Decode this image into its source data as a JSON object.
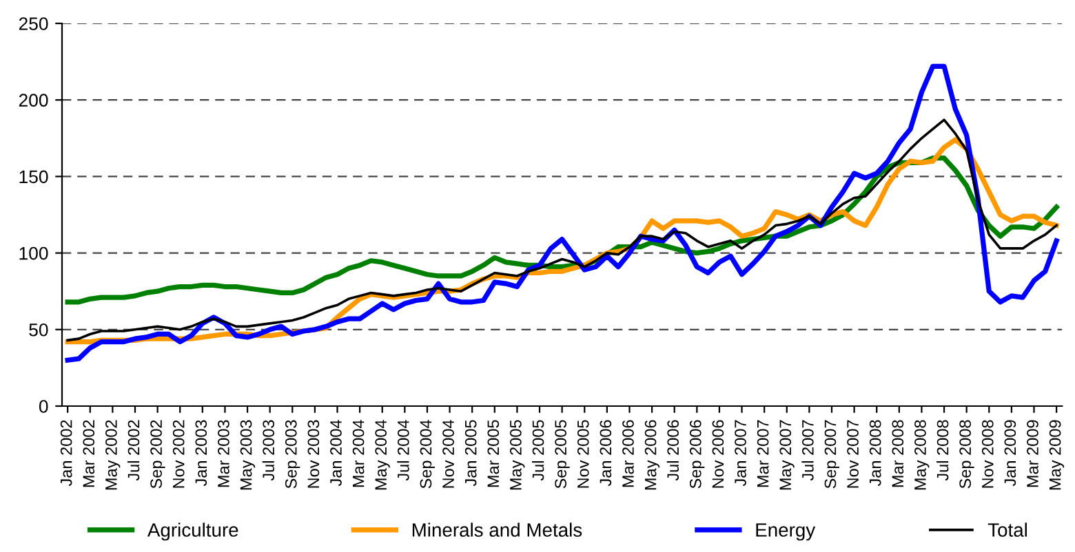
{
  "chart_data": {
    "type": "line",
    "categories": [
      "Jan 2002",
      null,
      "Mar 2002",
      null,
      "May 2002",
      null,
      "Jul 2002",
      null,
      "Sep 2002",
      null,
      "Nov 2002",
      null,
      "Jan 2003",
      null,
      "Mar 2003",
      null,
      "May 2003",
      null,
      "Jul 2003",
      null,
      "Sep 2003",
      null,
      "Nov 2003",
      null,
      "Jan 2004",
      null,
      "Mar 2004",
      null,
      "May 2004",
      null,
      "Jul 2004",
      null,
      "Sep 2004",
      null,
      "Nov 2004",
      null,
      "Jan 2005",
      null,
      "Mar 2005",
      null,
      "May 2005",
      null,
      "Jul 2005",
      null,
      "Sep 2005",
      null,
      "Nov 2005",
      null,
      "Jan 2006",
      null,
      "Mar 2006",
      null,
      "May 2006",
      null,
      "Jul 2006",
      null,
      "Sep 2006",
      null,
      "Nov 2006",
      null,
      "Jan 2007",
      null,
      "Mar 2007",
      null,
      "May 2007",
      null,
      "Jul 2007",
      null,
      "Sep 2007",
      null,
      "Nov 2007",
      null,
      "Jan 2008",
      null,
      "Mar 2008",
      null,
      "May 2008",
      null,
      "Jul 2008",
      null,
      "Sep 2008",
      null,
      "Nov 2008",
      null,
      "Jan 2009",
      null,
      "Mar 2009",
      null,
      "May 2009"
    ],
    "series": [
      {
        "name": "Agriculture",
        "color": "#008000",
        "values": [
          68,
          68,
          70,
          71,
          71,
          71,
          72,
          74,
          75,
          77,
          78,
          78,
          79,
          79,
          78,
          78,
          77,
          76,
          75,
          74,
          74,
          76,
          80,
          84,
          86,
          90,
          92,
          95,
          94,
          92,
          90,
          88,
          86,
          85,
          85,
          85,
          88,
          92,
          97,
          94,
          93,
          92,
          92,
          91,
          91,
          92,
          92,
          95,
          99,
          104,
          104,
          104,
          107,
          105,
          103,
          101,
          100,
          101,
          103,
          106,
          108,
          109,
          110,
          111,
          111,
          114,
          117,
          118,
          121,
          125,
          132,
          140,
          150,
          156,
          159,
          159,
          159,
          162,
          162,
          154,
          144,
          128,
          118,
          111,
          117,
          117,
          116,
          122,
          130
        ]
      },
      {
        "name": "Minerals and Metals",
        "color": "#ff9900",
        "values": [
          42,
          42,
          42,
          43,
          43,
          43,
          43,
          44,
          44,
          44,
          44,
          44,
          45,
          46,
          47,
          47,
          47,
          46,
          46,
          47,
          48,
          49,
          50,
          51,
          58,
          64,
          70,
          73,
          72,
          71,
          72,
          73,
          74,
          75,
          75,
          76,
          80,
          83,
          85,
          85,
          84,
          87,
          87,
          88,
          88,
          90,
          92,
          96,
          100,
          101,
          103,
          110,
          121,
          116,
          121,
          121,
          121,
          120,
          121,
          117,
          111,
          113,
          116,
          127,
          125,
          122,
          125,
          121,
          125,
          127,
          121,
          118,
          130,
          145,
          155,
          160,
          159,
          160,
          169,
          174,
          168,
          155,
          140,
          125,
          121,
          124,
          124,
          120,
          118
        ]
      },
      {
        "name": "Energy",
        "color": "#0000ff",
        "values": [
          30,
          31,
          38,
          42,
          42,
          42,
          44,
          45,
          47,
          47,
          42,
          46,
          54,
          58,
          54,
          46,
          45,
          47,
          50,
          52,
          47,
          49,
          50,
          52,
          55,
          57,
          57,
          62,
          67,
          63,
          67,
          69,
          70,
          80,
          70,
          68,
          68,
          69,
          81,
          80,
          78,
          89,
          92,
          103,
          109,
          99,
          89,
          91,
          98,
          91,
          100,
          111,
          109,
          108,
          115,
          105,
          91,
          87,
          94,
          98,
          86,
          93,
          101,
          111,
          114,
          118,
          124,
          118,
          130,
          140,
          152,
          149,
          152,
          160,
          172,
          181,
          205,
          222,
          222,
          194,
          177,
          136,
          75,
          68,
          72,
          71,
          82,
          88,
          108
        ]
      },
      {
        "name": "Total",
        "color": "#000000",
        "values": [
          43,
          44,
          47,
          49,
          49,
          49,
          50,
          51,
          52,
          51,
          50,
          52,
          55,
          57,
          55,
          52,
          52,
          53,
          54,
          55,
          56,
          58,
          61,
          64,
          66,
          70,
          72,
          74,
          73,
          72,
          73,
          74,
          76,
          77,
          76,
          75,
          79,
          83,
          87,
          86,
          85,
          88,
          90,
          93,
          96,
          94,
          91,
          95,
          100,
          99,
          104,
          111,
          111,
          109,
          114,
          113,
          108,
          104,
          106,
          108,
          103,
          108,
          112,
          118,
          119,
          121,
          124,
          119,
          126,
          132,
          136,
          137,
          145,
          153,
          160,
          168,
          175,
          181,
          187,
          178,
          167,
          135,
          112,
          103,
          103,
          103,
          108,
          112,
          118
        ]
      }
    ],
    "ylim": [
      0,
      250
    ],
    "yticks": [
      0,
      50,
      100,
      150,
      200,
      250
    ],
    "grid": "y",
    "legend": "bottom",
    "line_style": "solid",
    "marker": "none"
  }
}
